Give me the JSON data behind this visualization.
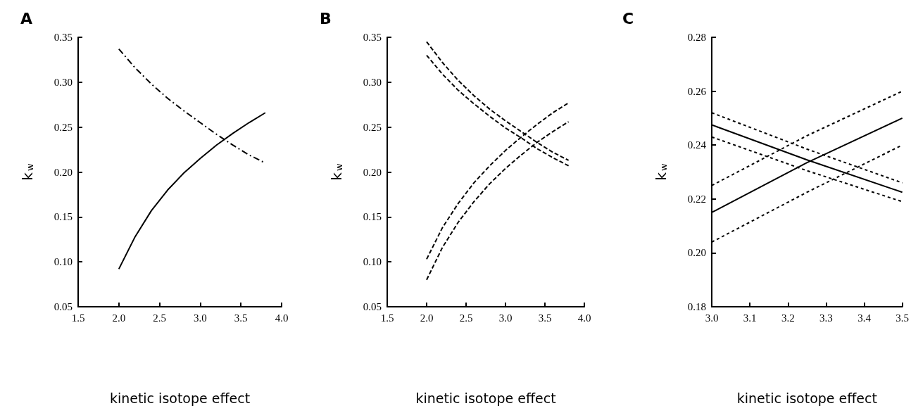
{
  "chart_data": [
    {
      "type": "line",
      "title": "A",
      "xlabel": "kinetic isotope effect",
      "ylabel": "k$_{w}$",
      "xlim": [
        1.5,
        4.0
      ],
      "ylim": [
        0.05,
        0.35
      ],
      "xticks": [
        1.5,
        {
          "value": 2,
          "label": "2.0"
        },
        2.5,
        {
          "value": 3,
          "label": "3.0"
        },
        3.5,
        {
          "value": 4,
          "label": "4.0"
        }
      ],
      "yticks": [
        0.05,
        {
          "value": 0.1,
          "label": "0.10"
        },
        0.15,
        {
          "value": 0.2,
          "label": "0.20"
        },
        0.25,
        {
          "value": 0.3,
          "label": "0.30"
        },
        0.35
      ],
      "marker": "none",
      "grid": false,
      "series": [
        {
          "color": "#000000",
          "line_style": "solid",
          "x": [
            2.0,
            2.2,
            2.4,
            2.6,
            2.8,
            3.0,
            3.2,
            3.4,
            3.6,
            3.8
          ],
          "values": [
            0.092,
            0.128,
            0.157,
            0.18,
            0.199,
            0.215,
            0.23,
            0.243,
            0.255,
            0.266
          ]
        },
        {
          "color": "#000000",
          "line_style": "dashdot",
          "x": [
            2.0,
            2.2,
            2.4,
            2.6,
            2.8,
            3.0,
            3.2,
            3.4,
            3.6,
            3.8
          ],
          "values": [
            0.337,
            0.316,
            0.298,
            0.282,
            0.268,
            0.255,
            0.242,
            0.23,
            0.219,
            0.21
          ]
        }
      ]
    },
    {
      "type": "line",
      "title": "B",
      "xlabel": "kinetic isotope effect",
      "ylabel": "k$_{w}$",
      "xlim": [
        1.5,
        4.0
      ],
      "ylim": [
        0.05,
        0.35
      ],
      "xticks": [
        1.5,
        {
          "value": 2,
          "label": "2.0"
        },
        2.5,
        {
          "value": 3,
          "label": "3.0"
        },
        3.5,
        {
          "value": 4,
          "label": "4.0"
        }
      ],
      "yticks": [
        0.05,
        {
          "value": 0.1,
          "label": "0.10"
        },
        0.15,
        {
          "value": 0.2,
          "label": "0.20"
        },
        0.25,
        {
          "value": 0.3,
          "label": "0.30"
        },
        0.35
      ],
      "marker": "none",
      "grid": false,
      "series": [
        {
          "color": "#000000",
          "line_style": "dashed",
          "x": [
            2.0,
            2.2,
            2.4,
            2.6,
            2.8,
            3.0,
            3.2,
            3.4,
            3.6,
            3.8
          ],
          "values": [
            0.103,
            0.138,
            0.165,
            0.188,
            0.207,
            0.224,
            0.239,
            0.253,
            0.266,
            0.277
          ]
        },
        {
          "color": "#000000",
          "line_style": "dashed",
          "x": [
            2.0,
            2.2,
            2.4,
            2.6,
            2.8,
            3.0,
            3.2,
            3.4,
            3.6,
            3.8
          ],
          "values": [
            0.08,
            0.116,
            0.144,
            0.167,
            0.187,
            0.204,
            0.219,
            0.233,
            0.245,
            0.256
          ]
        },
        {
          "color": "#000000",
          "line_style": "dashed",
          "x": [
            2.0,
            2.2,
            2.4,
            2.6,
            2.8,
            3.0,
            3.2,
            3.4,
            3.6,
            3.8
          ],
          "values": [
            0.345,
            0.322,
            0.302,
            0.285,
            0.27,
            0.257,
            0.245,
            0.233,
            0.222,
            0.213
          ]
        },
        {
          "color": "#000000",
          "line_style": "dashed",
          "x": [
            2.0,
            2.2,
            2.4,
            2.6,
            2.8,
            3.0,
            3.2,
            3.4,
            3.6,
            3.8
          ],
          "values": [
            0.33,
            0.309,
            0.291,
            0.276,
            0.262,
            0.249,
            0.238,
            0.226,
            0.216,
            0.207
          ]
        }
      ]
    },
    {
      "type": "line",
      "title": "C",
      "xlabel": "kinetic isotope effect",
      "ylabel": "k$_{w}$",
      "xlim": [
        3.0,
        3.5
      ],
      "ylim": [
        0.18,
        0.28
      ],
      "xticks": [
        {
          "value": 3,
          "label": "3.0"
        },
        3.1,
        3.2,
        3.3,
        3.4,
        3.5
      ],
      "yticks": [
        0.18,
        {
          "value": 0.2,
          "label": "0.20"
        },
        0.22,
        0.24,
        0.26,
        0.28
      ],
      "marker": "none",
      "grid": false,
      "series": [
        {
          "color": "#000000",
          "line_style": "solid",
          "x": [
            3.0,
            3.25,
            3.5
          ],
          "values": [
            0.2475,
            0.2345,
            0.2225
          ]
        },
        {
          "color": "#000000",
          "line_style": "solid",
          "x": [
            3.0,
            3.25,
            3.5
          ],
          "values": [
            0.215,
            0.2335,
            0.25
          ]
        },
        {
          "color": "#000000",
          "line_style": "dotted",
          "x": [
            3.0,
            3.25,
            3.5
          ],
          "values": [
            0.252,
            0.2385,
            0.226
          ]
        },
        {
          "color": "#000000",
          "line_style": "dotted",
          "x": [
            3.0,
            3.25,
            3.5
          ],
          "values": [
            0.243,
            0.2305,
            0.219
          ]
        },
        {
          "color": "#000000",
          "line_style": "dotted",
          "x": [
            3.0,
            3.25,
            3.5
          ],
          "values": [
            0.225,
            0.2435,
            0.26
          ]
        },
        {
          "color": "#000000",
          "line_style": "dotted",
          "x": [
            3.0,
            3.25,
            3.5
          ],
          "values": [
            0.204,
            0.2225,
            0.24
          ]
        }
      ]
    }
  ]
}
